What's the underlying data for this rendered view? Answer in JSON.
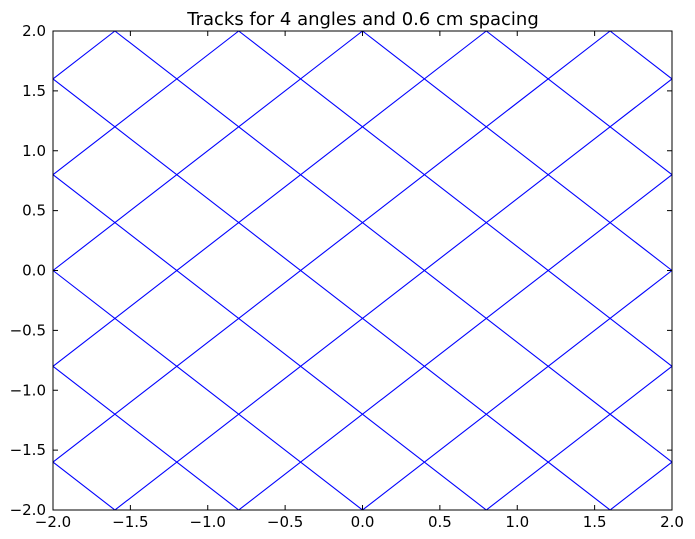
{
  "chart_data": {
    "type": "line",
    "title": "Tracks for 4 angles and 0.6 cm spacing",
    "xlabel": "",
    "ylabel": "",
    "xlim": [
      -2.0,
      2.0
    ],
    "ylim": [
      -2.0,
      2.0
    ],
    "grid": false,
    "line_color": "#0000ff",
    "xticks": [
      -2.0,
      -1.5,
      -1.0,
      -0.5,
      0.0,
      0.5,
      1.0,
      1.5,
      2.0
    ],
    "xtick_labels": [
      "−2.0",
      "−1.5",
      "−1.0",
      "−0.5",
      "0.0",
      "0.5",
      "1.0",
      "1.5",
      "2.0"
    ],
    "yticks": [
      2.0,
      1.5,
      1.0,
      0.5,
      0.0,
      -0.5,
      -1.0,
      -1.5,
      -2.0
    ],
    "ytick_labels": [
      "2.0",
      "1.5",
      "1.0",
      "0.5",
      "0.0",
      "−0.5",
      "−1.0",
      "−1.5",
      "−2.0"
    ],
    "tracks": [
      {
        "x": [
          -2.0,
          -1.6
        ],
        "y": [
          1.6,
          2.0
        ]
      },
      {
        "x": [
          -2.0,
          -0.8
        ],
        "y": [
          0.8,
          2.0
        ]
      },
      {
        "x": [
          -2.0,
          0.0
        ],
        "y": [
          0.0,
          2.0
        ]
      },
      {
        "x": [
          -2.0,
          0.8
        ],
        "y": [
          -0.8,
          2.0
        ]
      },
      {
        "x": [
          -2.0,
          1.6
        ],
        "y": [
          -1.6,
          2.0
        ]
      },
      {
        "x": [
          -1.6,
          2.0
        ],
        "y": [
          -2.0,
          1.6
        ]
      },
      {
        "x": [
          -0.8,
          2.0
        ],
        "y": [
          -2.0,
          0.8
        ]
      },
      {
        "x": [
          0.0,
          2.0
        ],
        "y": [
          -2.0,
          0.0
        ]
      },
      {
        "x": [
          0.8,
          2.0
        ],
        "y": [
          -2.0,
          -0.8
        ]
      },
      {
        "x": [
          1.6,
          2.0
        ],
        "y": [
          -2.0,
          -1.6
        ]
      },
      {
        "x": [
          -1.6,
          2.0
        ],
        "y": [
          2.0,
          -1.6
        ]
      },
      {
        "x": [
          -0.8,
          2.0
        ],
        "y": [
          2.0,
          -0.8
        ]
      },
      {
        "x": [
          0.0,
          2.0
        ],
        "y": [
          2.0,
          0.0
        ]
      },
      {
        "x": [
          0.8,
          2.0
        ],
        "y": [
          2.0,
          0.8
        ]
      },
      {
        "x": [
          1.6,
          2.0
        ],
        "y": [
          2.0,
          1.6
        ]
      },
      {
        "x": [
          -2.0,
          1.6
        ],
        "y": [
          1.6,
          -2.0
        ]
      },
      {
        "x": [
          -2.0,
          0.8
        ],
        "y": [
          0.8,
          -2.0
        ]
      },
      {
        "x": [
          -2.0,
          0.0
        ],
        "y": [
          0.0,
          -2.0
        ]
      },
      {
        "x": [
          -2.0,
          -0.8
        ],
        "y": [
          -0.8,
          -2.0
        ]
      },
      {
        "x": [
          -2.0,
          -1.6
        ],
        "y": [
          -1.6,
          -2.0
        ]
      }
    ]
  }
}
